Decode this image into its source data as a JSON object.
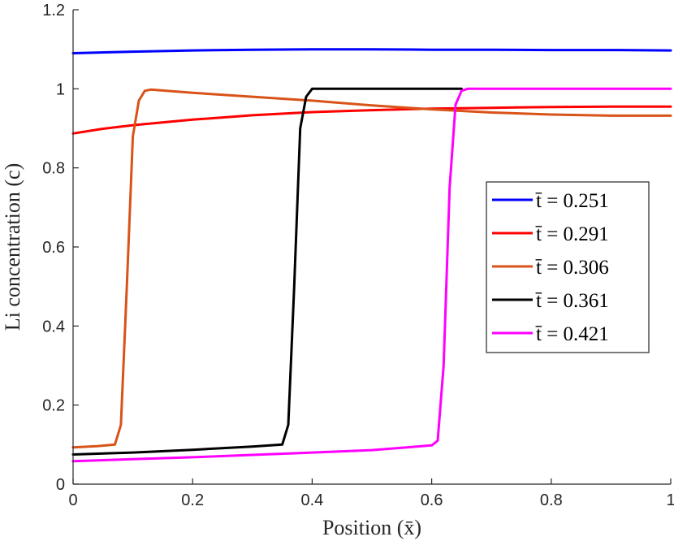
{
  "chart_data": {
    "type": "line",
    "xlabel": "Position (x̄)",
    "ylabel": "Li concentration (c)",
    "xlim": [
      0,
      1
    ],
    "ylim": [
      0,
      1.2
    ],
    "xticks": [
      0,
      0.2,
      0.4,
      0.6,
      0.8,
      1
    ],
    "xtick_labels": [
      "0",
      "0.2",
      "0.4",
      "0.6",
      "0.8",
      "1"
    ],
    "yticks": [
      0,
      0.2,
      0.4,
      0.6,
      0.8,
      1,
      1.2
    ],
    "ytick_labels": [
      "0",
      "0.2",
      "0.4",
      "0.6",
      "0.8",
      "1",
      "1.2"
    ],
    "grid": false,
    "legend_position": "right",
    "series": [
      {
        "name": "t̄ = 0.251",
        "color": "#0000ff",
        "x": [
          0,
          0.1,
          0.2,
          0.3,
          0.4,
          0.5,
          0.6,
          0.7,
          0.8,
          0.9,
          1.0
        ],
        "y": [
          1.09,
          1.094,
          1.097,
          1.099,
          1.1,
          1.1,
          1.099,
          1.099,
          1.098,
          1.098,
          1.097
        ]
      },
      {
        "name": "t̄ = 0.291",
        "color": "#ff0000",
        "x": [
          0,
          0.05,
          0.1,
          0.2,
          0.3,
          0.4,
          0.5,
          0.6,
          0.7,
          0.8,
          0.9,
          1.0
        ],
        "y": [
          0.887,
          0.899,
          0.908,
          0.922,
          0.933,
          0.941,
          0.946,
          0.95,
          0.952,
          0.954,
          0.955,
          0.955
        ]
      },
      {
        "name": "t̄ = 0.306",
        "color": "#d95319",
        "x": [
          0,
          0.04,
          0.07,
          0.08,
          0.09,
          0.1,
          0.11,
          0.12,
          0.13,
          0.2,
          0.3,
          0.4,
          0.5,
          0.6,
          0.7,
          0.8,
          0.9,
          1.0
        ],
        "y": [
          0.093,
          0.096,
          0.1,
          0.15,
          0.5,
          0.88,
          0.97,
          0.995,
          0.998,
          0.99,
          0.98,
          0.97,
          0.958,
          0.948,
          0.94,
          0.935,
          0.932,
          0.932
        ],
        "line_at_x0": true
      },
      {
        "name": "t̄ = 0.361",
        "color": "#000000",
        "x": [
          0,
          0.1,
          0.2,
          0.3,
          0.35,
          0.36,
          0.37,
          0.38,
          0.39,
          0.4,
          0.5,
          0.6,
          0.65
        ],
        "y": [
          0.075,
          0.08,
          0.087,
          0.095,
          0.1,
          0.15,
          0.5,
          0.9,
          0.98,
          1.0,
          1.0,
          1.0,
          1.0
        ]
      },
      {
        "name": "t̄ = 0.421",
        "color": "#ff00ff",
        "x": [
          0,
          0.1,
          0.2,
          0.3,
          0.4,
          0.5,
          0.6,
          0.61,
          0.62,
          0.63,
          0.64,
          0.65,
          0.66,
          0.7,
          0.8,
          0.9,
          1.0
        ],
        "y": [
          0.058,
          0.063,
          0.068,
          0.074,
          0.08,
          0.086,
          0.098,
          0.11,
          0.3,
          0.75,
          0.96,
          0.995,
          1.0,
          1.0,
          1.0,
          1.0,
          1.0
        ]
      }
    ]
  }
}
